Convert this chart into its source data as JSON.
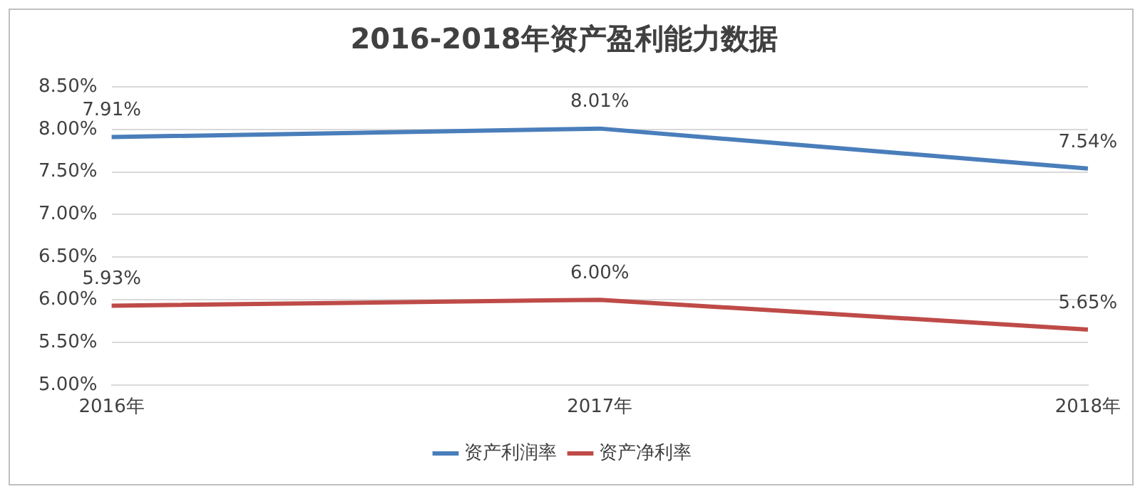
{
  "chart_data": {
    "type": "line",
    "title": "2016-2018年资产盈利能力数据",
    "categories": [
      "2016年",
      "2017年",
      "2018年"
    ],
    "series": [
      {
        "name": "资产利润率",
        "color": "#4a7ebb",
        "values": [
          7.91,
          8.01,
          7.54
        ],
        "value_labels": [
          "7.91%",
          "8.01%",
          "7.54%"
        ]
      },
      {
        "name": "资产净利率",
        "color": "#be4b48",
        "values": [
          5.93,
          6.0,
          5.65
        ],
        "value_labels": [
          "5.93%",
          "6.00%",
          "5.65%"
        ]
      }
    ],
    "ylim": [
      5,
      8.5
    ],
    "yticks": [
      {
        "value": 5,
        "label": "5.00%"
      },
      {
        "value": 5.5,
        "label": "5.50%"
      },
      {
        "value": 6,
        "label": "6.00%"
      },
      {
        "value": 6.5,
        "label": "6.50%"
      },
      {
        "value": 7,
        "label": "7.00%"
      },
      {
        "value": 7.5,
        "label": "7.50%"
      },
      {
        "value": 8,
        "label": "8.00%"
      },
      {
        "value": 8.5,
        "label": "8.50%"
      }
    ],
    "grid": "y",
    "legend": "bottom",
    "marker": "none",
    "line_style": "solid"
  }
}
